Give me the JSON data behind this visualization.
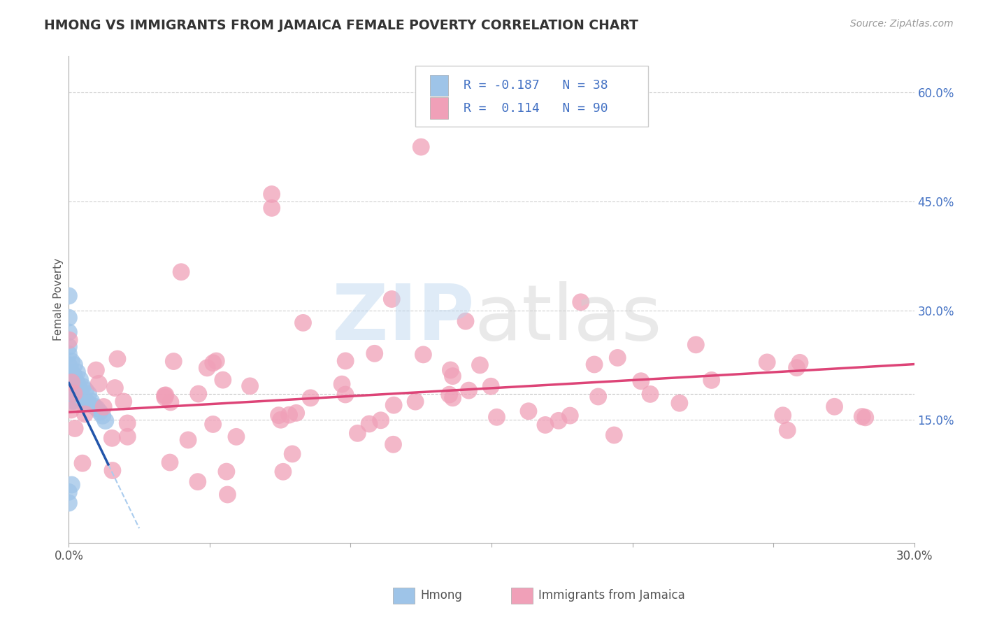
{
  "title": "HMONG VS IMMIGRANTS FROM JAMAICA FEMALE POVERTY CORRELATION CHART",
  "source_text": "Source: ZipAtlas.com",
  "ylabel": "Female Poverty",
  "xlim": [
    0.0,
    0.3
  ],
  "ylim": [
    -0.02,
    0.65
  ],
  "ytick_right_labels": [
    "15.0%",
    "30.0%",
    "45.0%",
    "60.0%"
  ],
  "ytick_right_vals": [
    0.15,
    0.3,
    0.45,
    0.6
  ],
  "hmong_color": "#9ec4e8",
  "jamaica_color": "#f0a0b8",
  "hmong_line_color": "#2255aa",
  "hmong_line_dashed_color": "#aaccee",
  "jamaica_line_color": "#dd4477",
  "grid_color": "#bbbbbb",
  "background_color": "#ffffff",
  "legend_text_color": "#4472c4",
  "right_axis_color": "#4472c4",
  "title_color": "#333333",
  "source_color": "#999999",
  "ylabel_color": "#555555",
  "bottom_label_color": "#555555"
}
